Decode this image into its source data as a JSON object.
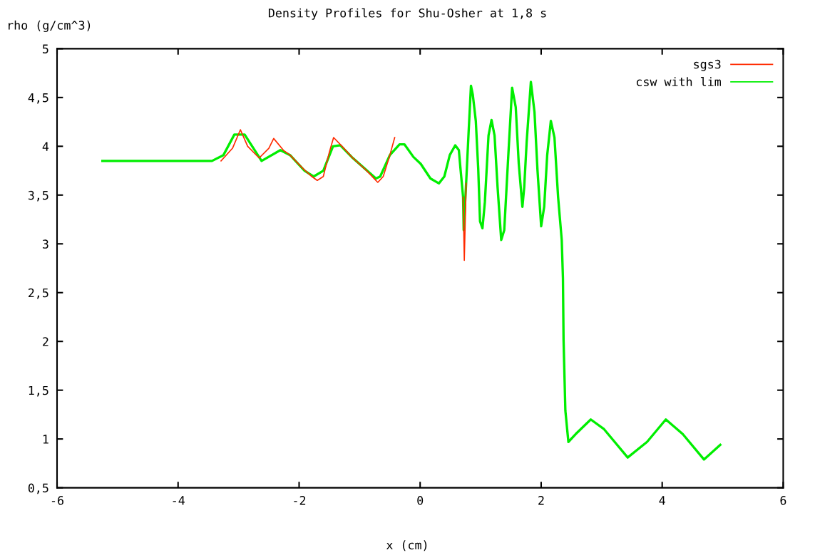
{
  "chart_data": {
    "type": "line",
    "title": "Density Profiles for Shu-Osher at 1,8 s",
    "xlabel": "x (cm)",
    "ylabel": "rho (g/cm^3)",
    "xlim": [
      -6,
      6
    ],
    "xticks": [
      -6,
      -4,
      -2,
      0,
      2,
      4,
      6
    ],
    "ylim": [
      0.5,
      5
    ],
    "yticks": [
      {
        "value": 0.5,
        "label": "0,5"
      },
      1,
      {
        "value": 1.5,
        "label": "1,5"
      },
      2,
      {
        "value": 2.5,
        "label": "2,5"
      },
      3,
      {
        "value": 3.5,
        "label": "3,5"
      },
      4,
      {
        "value": 4.5,
        "label": "4,5"
      },
      5
    ],
    "grid": false,
    "legend": "top right",
    "line_style": "solid",
    "marker": "none",
    "series": [
      {
        "name": "sgs3",
        "color": "#ff2a00",
        "x": [
          -3.29,
          -3.1,
          -2.97,
          -2.85,
          -2.66,
          -2.5,
          -2.42,
          -2.26,
          -2.15,
          -1.95,
          -1.79,
          -1.7,
          -1.6,
          -1.5,
          -1.43,
          -1.29,
          -1.13,
          -0.9,
          -0.7,
          -0.61,
          -0.5,
          -0.42,
          0.0,
          0.71,
          0.73,
          0.76
        ],
        "values": [
          3.85,
          3.98,
          4.17,
          4.0,
          3.88,
          3.98,
          4.08,
          3.96,
          3.91,
          3.78,
          3.69,
          3.65,
          3.69,
          3.94,
          4.09,
          4.0,
          3.89,
          3.76,
          3.63,
          3.69,
          3.91,
          4.09,
          null,
          3.48,
          2.83,
          3.62
        ]
      },
      {
        "name": "csw with lim",
        "color": "#00ee00",
        "x": [
          -5.25,
          -3.44,
          -3.25,
          -3.07,
          -2.9,
          -2.62,
          -2.31,
          -2.15,
          -1.91,
          -1.76,
          -1.6,
          -1.44,
          -1.32,
          -1.13,
          -0.73,
          -0.66,
          -0.5,
          -0.34,
          -0.26,
          -0.11,
          0.01,
          0.17,
          0.31,
          0.4,
          0.49,
          0.58,
          0.64,
          0.67,
          0.71,
          0.72,
          0.76,
          0.8,
          0.84,
          0.87,
          0.92,
          0.96,
          0.99,
          1.03,
          1.07,
          1.13,
          1.18,
          1.23,
          1.28,
          1.34,
          1.39,
          1.46,
          1.52,
          1.58,
          1.63,
          1.69,
          1.72,
          1.76,
          1.83,
          1.89,
          1.94,
          2.0,
          2.05,
          2.1,
          2.16,
          2.22,
          2.28,
          2.34,
          2.36,
          2.37,
          2.4,
          2.45,
          2.57,
          2.82,
          3.04,
          3.43,
          3.75,
          4.06,
          4.34,
          4.69,
          4.96
        ],
        "values": [
          3.85,
          3.85,
          3.91,
          4.12,
          4.12,
          3.85,
          3.96,
          3.91,
          3.75,
          3.69,
          3.75,
          4.0,
          4.01,
          3.89,
          3.67,
          3.69,
          3.91,
          4.02,
          4.02,
          3.89,
          3.82,
          3.67,
          3.62,
          3.69,
          3.91,
          4.01,
          3.96,
          3.75,
          3.48,
          3.14,
          3.62,
          4.13,
          4.62,
          4.53,
          4.26,
          3.77,
          3.23,
          3.16,
          3.43,
          4.11,
          4.27,
          4.11,
          3.58,
          3.04,
          3.14,
          3.94,
          4.6,
          4.4,
          3.82,
          3.38,
          3.58,
          4.04,
          4.66,
          4.35,
          3.75,
          3.18,
          3.38,
          3.91,
          4.26,
          4.09,
          3.48,
          3.04,
          2.65,
          2.02,
          1.29,
          0.97,
          1.05,
          1.2,
          1.1,
          0.81,
          0.97,
          1.2,
          1.05,
          0.79,
          0.94
        ]
      }
    ]
  }
}
